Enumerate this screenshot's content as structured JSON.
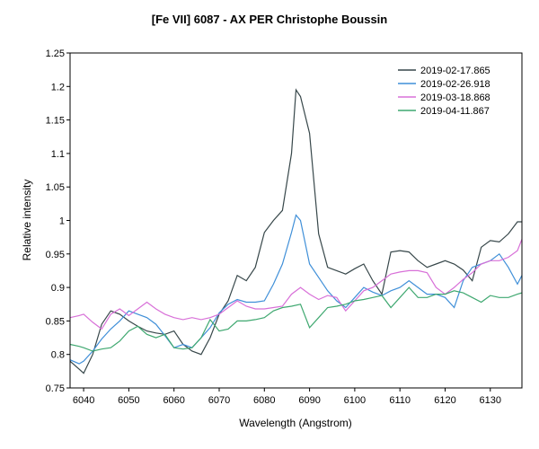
{
  "chart_data": {
    "type": "line",
    "title": "[Fe VII] 6087 - AX PER   Christophe Boussin",
    "xlabel": "Wavelength (Angstrom)",
    "ylabel": "Relative intensity",
    "xlim": [
      6037,
      6137
    ],
    "ylim": [
      0.75,
      1.25
    ],
    "xticks": [
      6040,
      6050,
      6060,
      6070,
      6080,
      6090,
      6100,
      6110,
      6120,
      6130
    ],
    "xtick_labels": [
      "6040",
      "6050",
      "6060",
      "6070",
      "6080",
      "6090",
      "6100",
      "6110",
      "6120",
      "6130"
    ],
    "yticks": [
      0.75,
      0.8,
      0.85,
      0.9,
      0.95,
      1.0,
      1.05,
      1.1,
      1.15,
      1.2,
      1.25
    ],
    "ytick_labels": [
      "0.75",
      "0.8",
      "0.85",
      "0.9",
      "0.95",
      "1",
      "1.05",
      "1.1",
      "1.15",
      "1.2",
      "1.25"
    ],
    "legend_position": "top-right",
    "series": [
      {
        "name": "2019-02-17.865",
        "color": "#37474a",
        "x": [
          6037,
          6039,
          6040,
          6042,
          6044,
          6046,
          6048,
          6050,
          6052,
          6054,
          6056,
          6058,
          6060,
          6062,
          6064,
          6066,
          6068,
          6070,
          6072,
          6074,
          6076,
          6078,
          6080,
          6082,
          6084,
          6086,
          6087,
          6088,
          6090,
          6092,
          6094,
          6096,
          6098,
          6100,
          6102,
          6104,
          6106,
          6108,
          6110,
          6112,
          6114,
          6116,
          6118,
          6120,
          6122,
          6124,
          6126,
          6128,
          6130,
          6132,
          6134,
          6136,
          6137
        ],
        "values": [
          0.79,
          0.778,
          0.772,
          0.8,
          0.845,
          0.865,
          0.86,
          0.85,
          0.842,
          0.835,
          0.832,
          0.83,
          0.835,
          0.815,
          0.805,
          0.8,
          0.825,
          0.86,
          0.88,
          0.918,
          0.91,
          0.93,
          0.982,
          1.0,
          1.015,
          1.1,
          1.195,
          1.185,
          1.13,
          0.98,
          0.93,
          0.925,
          0.92,
          0.928,
          0.935,
          0.91,
          0.89,
          0.953,
          0.955,
          0.953,
          0.94,
          0.93,
          0.935,
          0.94,
          0.935,
          0.926,
          0.91,
          0.96,
          0.97,
          0.968,
          0.98,
          0.998,
          0.998
        ]
      },
      {
        "name": "2019-02-26.918",
        "color": "#3f8fd8",
        "x": [
          6037,
          6039,
          6040,
          6042,
          6044,
          6046,
          6048,
          6050,
          6052,
          6054,
          6056,
          6058,
          6060,
          6062,
          6064,
          6066,
          6068,
          6070,
          6072,
          6074,
          6076,
          6078,
          6080,
          6082,
          6084,
          6086,
          6087,
          6088,
          6090,
          6092,
          6094,
          6096,
          6098,
          6100,
          6102,
          6104,
          6106,
          6108,
          6110,
          6112,
          6114,
          6116,
          6118,
          6120,
          6122,
          6124,
          6126,
          6128,
          6130,
          6132,
          6134,
          6136,
          6137
        ],
        "values": [
          0.792,
          0.786,
          0.79,
          0.805,
          0.823,
          0.838,
          0.85,
          0.865,
          0.86,
          0.855,
          0.845,
          0.828,
          0.81,
          0.815,
          0.81,
          0.825,
          0.84,
          0.862,
          0.875,
          0.882,
          0.878,
          0.878,
          0.88,
          0.905,
          0.935,
          0.982,
          1.008,
          1.0,
          0.935,
          0.915,
          0.895,
          0.88,
          0.87,
          0.885,
          0.9,
          0.893,
          0.888,
          0.895,
          0.9,
          0.91,
          0.9,
          0.89,
          0.89,
          0.885,
          0.87,
          0.91,
          0.93,
          0.935,
          0.94,
          0.95,
          0.93,
          0.905,
          0.918
        ]
      },
      {
        "name": "2019-03-18.868",
        "color": "#d870d8",
        "x": [
          6037,
          6039,
          6040,
          6042,
          6044,
          6046,
          6048,
          6050,
          6052,
          6054,
          6056,
          6058,
          6060,
          6062,
          6064,
          6066,
          6068,
          6070,
          6072,
          6074,
          6076,
          6078,
          6080,
          6082,
          6084,
          6086,
          6088,
          6090,
          6092,
          6094,
          6096,
          6098,
          6100,
          6102,
          6104,
          6106,
          6108,
          6110,
          6112,
          6114,
          6116,
          6118,
          6120,
          6122,
          6124,
          6126,
          6128,
          6130,
          6132,
          6134,
          6136,
          6137
        ],
        "values": [
          0.855,
          0.858,
          0.86,
          0.848,
          0.838,
          0.86,
          0.868,
          0.858,
          0.868,
          0.878,
          0.868,
          0.86,
          0.855,
          0.852,
          0.855,
          0.852,
          0.855,
          0.86,
          0.87,
          0.88,
          0.872,
          0.868,
          0.868,
          0.87,
          0.872,
          0.89,
          0.9,
          0.89,
          0.882,
          0.888,
          0.885,
          0.865,
          0.88,
          0.895,
          0.9,
          0.91,
          0.92,
          0.923,
          0.925,
          0.925,
          0.922,
          0.9,
          0.89,
          0.9,
          0.912,
          0.922,
          0.935,
          0.94,
          0.94,
          0.945,
          0.955,
          0.972
        ]
      },
      {
        "name": "2019-04-11.867",
        "color": "#3fa870",
        "x": [
          6037,
          6039,
          6040,
          6042,
          6044,
          6046,
          6048,
          6050,
          6052,
          6054,
          6056,
          6058,
          6060,
          6062,
          6064,
          6066,
          6068,
          6070,
          6072,
          6074,
          6076,
          6078,
          6080,
          6082,
          6084,
          6086,
          6088,
          6090,
          6092,
          6094,
          6096,
          6098,
          6100,
          6102,
          6104,
          6106,
          6108,
          6110,
          6112,
          6114,
          6116,
          6118,
          6120,
          6122,
          6124,
          6126,
          6128,
          6130,
          6132,
          6134,
          6136,
          6137
        ],
        "values": [
          0.815,
          0.812,
          0.81,
          0.805,
          0.808,
          0.81,
          0.82,
          0.835,
          0.842,
          0.83,
          0.825,
          0.83,
          0.81,
          0.808,
          0.81,
          0.825,
          0.852,
          0.835,
          0.838,
          0.85,
          0.85,
          0.852,
          0.855,
          0.865,
          0.87,
          0.872,
          0.875,
          0.84,
          0.855,
          0.87,
          0.872,
          0.875,
          0.88,
          0.882,
          0.885,
          0.888,
          0.87,
          0.885,
          0.9,
          0.885,
          0.885,
          0.89,
          0.89,
          0.895,
          0.892,
          0.885,
          0.878,
          0.888,
          0.885,
          0.885,
          0.89,
          0.892
        ]
      }
    ]
  }
}
